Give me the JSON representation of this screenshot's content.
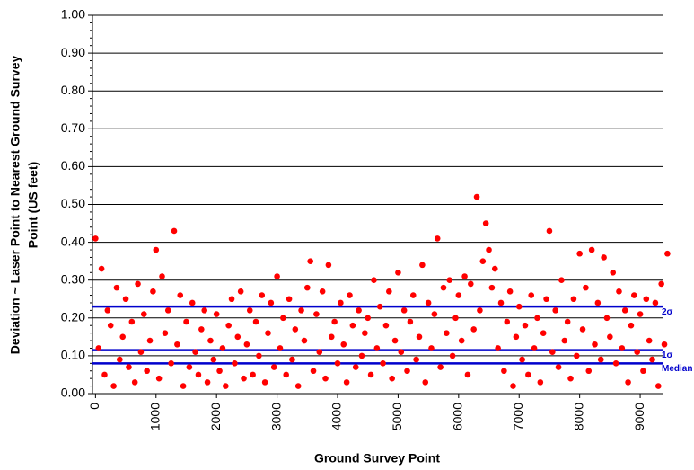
{
  "chart_data": {
    "type": "scatter",
    "xlabel": "Ground Survey Point",
    "ylabel": [
      "Deviation ~ Laser Point to Nearest Ground Survey",
      "Point (US feet)"
    ],
    "xlim": [
      -50,
      9370
    ],
    "ylim": [
      0,
      1
    ],
    "xticks": [
      0,
      1000,
      2000,
      3000,
      4000,
      5000,
      6000,
      7000,
      8000,
      9000
    ],
    "yticks": [
      {
        "value": 0,
        "label": "0.00"
      },
      {
        "value": 0.1,
        "label": "0.10"
      },
      {
        "value": 0.2,
        "label": "0.20"
      },
      {
        "value": 0.3,
        "label": "0.30"
      },
      {
        "value": 0.4,
        "label": "0.40"
      },
      {
        "value": 0.5,
        "label": "0.50"
      },
      {
        "value": 0.6,
        "label": "0.60"
      },
      {
        "value": 0.7,
        "label": "0.70"
      },
      {
        "value": 0.8,
        "label": "0.80"
      },
      {
        "value": 0.9,
        "label": "0.90"
      },
      {
        "value": 1,
        "label": "1.00"
      }
    ],
    "grid": true,
    "reference_lines": [
      {
        "label": "2σ",
        "value": 0.23,
        "color": "#0000cc"
      },
      {
        "label": "1σ",
        "value": 0.115,
        "color": "#0000cc"
      },
      {
        "label": "Median",
        "value": 0.08,
        "color": "#0000cc"
      }
    ],
    "series": [
      {
        "color": "#ff0000",
        "x": [
          0,
          50,
          100,
          150,
          200,
          250,
          300,
          350,
          400,
          450,
          500,
          550,
          600,
          650,
          700,
          750,
          800,
          850,
          900,
          950,
          1000,
          1050,
          1100,
          1150,
          1200,
          1250,
          1300,
          1350,
          1400,
          1450,
          1500,
          1550,
          1600,
          1650,
          1700,
          1750,
          1800,
          1850,
          1900,
          1950,
          2000,
          2050,
          2100,
          2150,
          2200,
          2250,
          2300,
          2350,
          2400,
          2450,
          2500,
          2550,
          2600,
          2650,
          2700,
          2750,
          2800,
          2850,
          2900,
          2950,
          3000,
          3050,
          3100,
          3150,
          3200,
          3250,
          3300,
          3350,
          3400,
          3450,
          3500,
          3550,
          3600,
          3650,
          3700,
          3750,
          3800,
          3850,
          3900,
          3950,
          4000,
          4050,
          4100,
          4150,
          4200,
          4250,
          4300,
          4350,
          4400,
          4450,
          4500,
          4550,
          4600,
          4650,
          4700,
          4750,
          4800,
          4850,
          4900,
          4950,
          5000,
          5050,
          5100,
          5150,
          5200,
          5250,
          5300,
          5350,
          5400,
          5450,
          5500,
          5550,
          5600,
          5650,
          5700,
          5750,
          5800,
          5850,
          5900,
          5950,
          6000,
          6050,
          6100,
          6150,
          6200,
          6250,
          6300,
          6350,
          6400,
          6450,
          6500,
          6550,
          6600,
          6650,
          6700,
          6750,
          6800,
          6850,
          6900,
          6950,
          7000,
          7050,
          7100,
          7150,
          7200,
          7250,
          7300,
          7350,
          7400,
          7450,
          7500,
          7550,
          7600,
          7650,
          7700,
          7750,
          7800,
          7850,
          7900,
          7950,
          8000,
          8050,
          8100,
          8150,
          8200,
          8250,
          8300,
          8350,
          8400,
          8450,
          8500,
          8550,
          8600,
          8650,
          8700,
          8750,
          8800,
          8850,
          8900,
          8950,
          9000,
          9050,
          9100,
          9150,
          9200,
          9250,
          9300,
          9350,
          9400,
          9450
        ],
        "values": [
          0.41,
          0.12,
          0.33,
          0.05,
          0.22,
          0.18,
          0.02,
          0.28,
          0.09,
          0.15,
          0.25,
          0.07,
          0.19,
          0.03,
          0.29,
          0.11,
          0.21,
          0.06,
          0.14,
          0.27,
          0.38,
          0.04,
          0.31,
          0.16,
          0.22,
          0.08,
          0.43,
          0.13,
          0.26,
          0.02,
          0.19,
          0.07,
          0.24,
          0.11,
          0.05,
          0.17,
          0.22,
          0.03,
          0.14,
          0.09,
          0.21,
          0.06,
          0.12,
          0.02,
          0.18,
          0.25,
          0.08,
          0.15,
          0.27,
          0.04,
          0.13,
          0.22,
          0.05,
          0.19,
          0.1,
          0.26,
          0.03,
          0.16,
          0.24,
          0.07,
          0.31,
          0.12,
          0.2,
          0.05,
          0.25,
          0.09,
          0.17,
          0.02,
          0.22,
          0.14,
          0.28,
          0.35,
          0.06,
          0.21,
          0.11,
          0.27,
          0.04,
          0.34,
          0.15,
          0.19,
          0.08,
          0.24,
          0.13,
          0.03,
          0.26,
          0.18,
          0.07,
          0.22,
          0.1,
          0.16,
          0.2,
          0.05,
          0.3,
          0.12,
          0.23,
          0.08,
          0.18,
          0.27,
          0.04,
          0.14,
          0.32,
          0.11,
          0.22,
          0.06,
          0.19,
          0.26,
          0.09,
          0.15,
          0.34,
          0.03,
          0.24,
          0.12,
          0.21,
          0.41,
          0.07,
          0.28,
          0.16,
          0.3,
          0.1,
          0.2,
          0.26,
          0.14,
          0.31,
          0.05,
          0.29,
          0.17,
          0.52,
          0.22,
          0.35,
          0.45,
          0.38,
          0.28,
          0.33,
          0.12,
          0.24,
          0.06,
          0.19,
          0.27,
          0.02,
          0.15,
          0.23,
          0.09,
          0.18,
          0.05,
          0.26,
          0.12,
          0.2,
          0.03,
          0.16,
          0.25,
          0.43,
          0.11,
          0.22,
          0.07,
          0.3,
          0.14,
          0.19,
          0.04,
          0.25,
          0.1,
          0.37,
          0.17,
          0.28,
          0.06,
          0.38,
          0.13,
          0.24,
          0.09,
          0.36,
          0.2,
          0.15,
          0.32,
          0.08,
          0.27,
          0.12,
          0.22,
          0.03,
          0.18,
          0.26,
          0.11,
          0.21,
          0.06,
          0.25,
          0.14,
          0.09,
          0.24,
          0.02,
          0.29,
          0.13,
          0.37
        ]
      }
    ]
  }
}
